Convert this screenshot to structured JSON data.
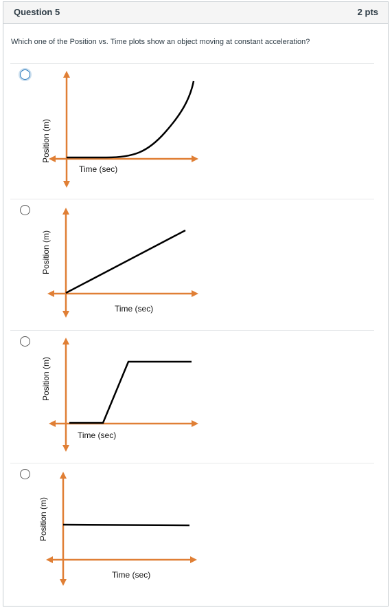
{
  "question": {
    "title": "Question 5",
    "points": "2 pts",
    "text": "Which one of the Position vs. Time plots show an object moving at constant acceleration?"
  },
  "answers": [
    {
      "id": "a",
      "selected": false,
      "y_label": "Position (m)",
      "x_label": "Time (sec)",
      "curve": "accelerating curve"
    },
    {
      "id": "b",
      "selected": false,
      "y_label": "Position (m)",
      "x_label": "Time (sec)",
      "curve": "straight sloped line"
    },
    {
      "id": "c",
      "selected": false,
      "y_label": "Position (m)",
      "x_label": "Time (sec)",
      "curve": "flat then ramp then flat"
    },
    {
      "id": "d",
      "selected": false,
      "y_label": "Position (m)",
      "x_label": "Time (sec)",
      "curve": "horizontal line"
    }
  ],
  "colors": {
    "axis": "#e07f35",
    "curve": "#000000",
    "focus": "#2b7abc"
  }
}
